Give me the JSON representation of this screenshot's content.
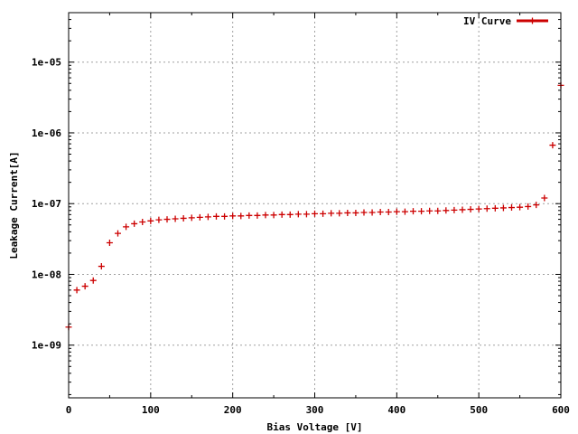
{
  "chart_data": {
    "type": "scatter",
    "xlabel": "Bias Voltage [V]",
    "ylabel": "Leakage Current[A]",
    "xlim": [
      0,
      600
    ],
    "ylim": [
      1.8e-10,
      5e-05
    ],
    "y_scale": "log",
    "grid": true,
    "legend_position": "top-right",
    "x_ticks": [
      "0",
      "100",
      "200",
      "300",
      "400",
      "500",
      "600"
    ],
    "y_ticks": [
      "1e-09",
      "1e-08",
      "1e-07",
      "1e-06",
      "1e-05"
    ],
    "series": [
      {
        "name": "IV Curve",
        "color": "#cc0000",
        "marker": "plus",
        "x": [
          0,
          10,
          20,
          30,
          40,
          50,
          60,
          70,
          80,
          90,
          100,
          110,
          120,
          130,
          140,
          150,
          160,
          170,
          180,
          190,
          200,
          210,
          220,
          230,
          240,
          250,
          260,
          270,
          280,
          290,
          300,
          310,
          320,
          330,
          340,
          350,
          360,
          370,
          380,
          390,
          400,
          410,
          420,
          430,
          440,
          450,
          460,
          470,
          480,
          490,
          500,
          510,
          520,
          530,
          540,
          550,
          560,
          570,
          580,
          590,
          600
        ],
        "y": [
          1.8e-09,
          6e-09,
          6.8e-09,
          8.2e-09,
          1.3e-08,
          2.8e-08,
          3.8e-08,
          4.7e-08,
          5.2e-08,
          5.5e-08,
          5.7e-08,
          5.9e-08,
          6e-08,
          6.1e-08,
          6.2e-08,
          6.3e-08,
          6.4e-08,
          6.5e-08,
          6.6e-08,
          6.6e-08,
          6.7e-08,
          6.7e-08,
          6.8e-08,
          6.8e-08,
          6.9e-08,
          6.9e-08,
          7e-08,
          7e-08,
          7.1e-08,
          7.1e-08,
          7.2e-08,
          7.2e-08,
          7.3e-08,
          7.3e-08,
          7.4e-08,
          7.4e-08,
          7.5e-08,
          7.5e-08,
          7.6e-08,
          7.6e-08,
          7.7e-08,
          7.7e-08,
          7.8e-08,
          7.8e-08,
          7.9e-08,
          7.9e-08,
          8e-08,
          8.1e-08,
          8.2e-08,
          8.3e-08,
          8.4e-08,
          8.5e-08,
          8.6e-08,
          8.7e-08,
          8.8e-08,
          8.9e-08,
          9.1e-08,
          9.6e-08,
          1.2e-07,
          6.7e-07,
          4.7e-06
        ]
      }
    ]
  }
}
